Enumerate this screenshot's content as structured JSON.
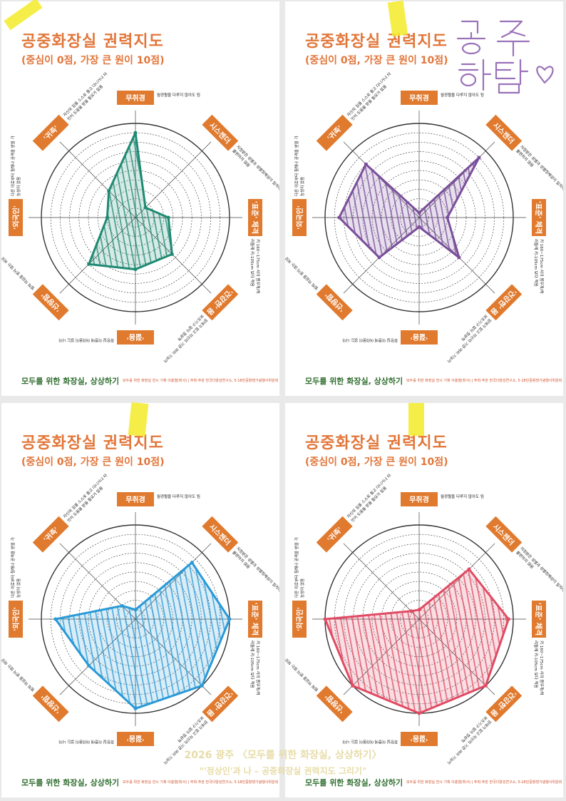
{
  "sheet": {
    "title": "공중화장실 권력지도",
    "subtitle": "(중심이 0점, 가장 큰 원이 10점)",
    "footer_brand": "모두를 위한 화장실, 상상하기",
    "footer_small": "모두를 위한 화장실 전시 기획  이충열(최서)  |  주최·주관  한국다양성연구소, 5·18민중항쟁기념행사위원회",
    "axes": [
      {
        "label": "무취경",
        "desc": "월경혈을 다루지 않아도 됨"
      },
      {
        "label": "시스젠더",
        "desc": "지정받은 성별과 성별정체성이 일치하고 불편하지 않음"
      },
      {
        "label": "'표준' 체격",
        "desc": "키 160~175cm 사이 몸무게/허리둘레 키-105cm 보다 적음"
      },
      {
        "label": "'건강한' 몸",
        "desc": "장애가 없고 자신의 기관 여러 기능이 보조기구 없이 정상적"
      },
      {
        "label": "'젊음'",
        "desc": "화장실 이용에 어려움이 없는 나이"
      },
      {
        "label": "'선량함'",
        "desc": "범죄 의심을 받지 않는 외모"
      },
      {
        "label": "'외국인'",
        "desc": "다른 이로부터 침해나 공격을 받을 가능성이 없음"
      },
      {
        "label": "'귀족'",
        "desc": "자신의 짐을 스스로 들고 다니거나 타인이 도움을 받을 필요가 없음"
      }
    ]
  },
  "charts": [
    {
      "name": "top-left",
      "color": "#1e8a73",
      "values": [
        9,
        1.5,
        3.5,
        5.5,
        5.5,
        7,
        3,
        4
      ]
    },
    {
      "name": "top-right",
      "color": "#7a4f9a",
      "values": [
        0.5,
        9,
        3,
        6,
        1,
        6,
        8.5,
        8
      ]
    },
    {
      "name": "bottom-left",
      "color": "#2a9ad6",
      "values": [
        1,
        8.5,
        10,
        10,
        9.5,
        7,
        8.5,
        2
      ]
    },
    {
      "name": "bottom-right",
      "color": "#e04b63",
      "values": [
        1,
        7.5,
        9.5,
        10,
        10,
        10,
        10,
        1.2
      ]
    }
  ],
  "handwriting": "공주 하탐♡",
  "caption": {
    "line1": "2026 광주 〈모두를 위한 화장실, 상상하기〉",
    "line2": "\"'정상인'과 나 – 공중화장실 권력지도 그리기\""
  }
}
